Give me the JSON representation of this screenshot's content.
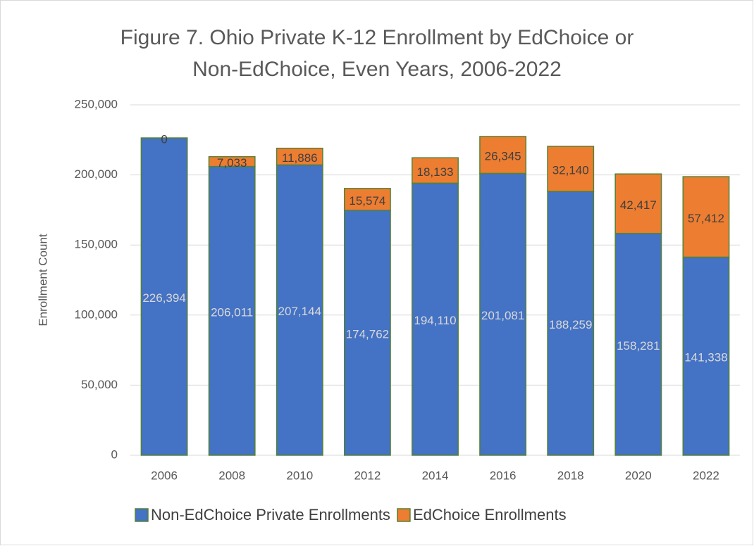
{
  "chart_data": {
    "type": "stacked_bar",
    "title": [
      "Figure 7. Ohio Private K-12 Enrollment by EdChoice or",
      "Non-EdChoice, Even Years, 2006-2022"
    ],
    "y_axis_label": "Enrollment Count",
    "categories": [
      "2006",
      "2008",
      "2010",
      "2012",
      "2014",
      "2016",
      "2018",
      "2020",
      "2022"
    ],
    "series": [
      {
        "name": "Non-EdChoice Private Enrollments",
        "color": "#4472c4",
        "label_color": "#d9d9d9",
        "values": [
          226394,
          206011,
          207144,
          174762,
          194110,
          201081,
          188259,
          158281,
          141338
        ],
        "value_labels": [
          "226,394",
          "206,011",
          "207,144",
          "174,762",
          "194,110",
          "201,081",
          "188,259",
          "158,281",
          "141,338"
        ]
      },
      {
        "name": "EdChoice Enrollments",
        "color": "#ed7d31",
        "label_color": "#404040",
        "values": [
          0,
          7033,
          11886,
          15574,
          18133,
          26345,
          32140,
          42417,
          57412
        ],
        "value_labels": [
          "0",
          "7,033",
          "11,886",
          "15,574",
          "18,133",
          "26,345",
          "32,140",
          "42,417",
          "57,412"
        ]
      }
    ],
    "bar_outline": "#548235",
    "ylim": [
      0,
      250000
    ],
    "yticks": [
      0,
      {
        "value": 50000,
        "label": "50,000"
      },
      {
        "value": 100000,
        "label": "100,000"
      },
      {
        "value": 150000,
        "label": "150,000"
      },
      {
        "value": 200000,
        "label": "200,000"
      },
      {
        "value": 250000,
        "label": "250,000"
      }
    ],
    "grid": true,
    "legend": "bottom"
  }
}
